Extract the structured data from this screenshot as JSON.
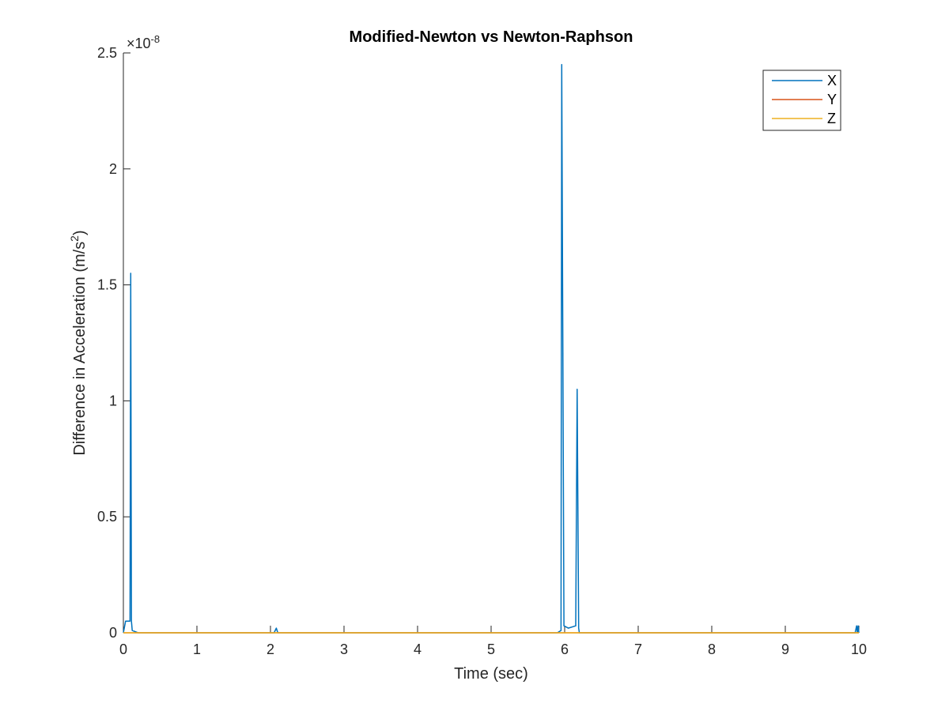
{
  "chart_data": {
    "type": "line",
    "title": "Modified-Newton vs Newton-Raphson",
    "xlabel": "Time (sec)",
    "ylabel": "Difference in Acceleration (m/s",
    "ylabel_sup": "2",
    "ylabel_close": ")",
    "exponent_prefix": "×10",
    "exponent_power": "-8",
    "xlim": [
      0,
      10
    ],
    "ylim": [
      0,
      2.5
    ],
    "x_ticks": [
      0,
      1,
      2,
      3,
      4,
      5,
      6,
      7,
      8,
      9,
      10
    ],
    "x_tick_labels": [
      "0",
      "1",
      "2",
      "3",
      "4",
      "5",
      "6",
      "7",
      "8",
      "9",
      "10"
    ],
    "y_ticks": [
      0,
      0.5,
      1,
      1.5,
      2,
      2.5
    ],
    "y_tick_labels": [
      "0",
      "0.5",
      "1",
      "1.5",
      "2",
      "2.5"
    ],
    "grid": false,
    "legend_position": "top-right",
    "series": [
      {
        "name": "X",
        "color": "#0072BD",
        "points": [
          [
            0,
            0
          ],
          [
            0.03,
            0.05
          ],
          [
            0.07,
            0.05
          ],
          [
            0.09,
            0.05
          ],
          [
            0.1,
            1.55
          ],
          [
            0.11,
            0.05
          ],
          [
            0.12,
            0.01
          ],
          [
            0.2,
            0
          ],
          [
            1,
            0
          ],
          [
            2,
            0
          ],
          [
            2.05,
            0
          ],
          [
            2.08,
            0.02
          ],
          [
            2.1,
            0
          ],
          [
            3,
            0
          ],
          [
            4,
            0
          ],
          [
            5,
            0
          ],
          [
            5.9,
            0
          ],
          [
            5.95,
            0.01
          ],
          [
            5.96,
            2.45
          ],
          [
            5.99,
            0.03
          ],
          [
            6.05,
            0.02
          ],
          [
            6.15,
            0.03
          ],
          [
            6.17,
            1.05
          ],
          [
            6.19,
            0.02
          ],
          [
            6.2,
            0
          ],
          [
            7,
            0
          ],
          [
            8,
            0
          ],
          [
            9,
            0
          ],
          [
            9.95,
            0
          ],
          [
            9.97,
            0.03
          ],
          [
            9.98,
            0
          ],
          [
            9.99,
            0.03
          ],
          [
            10,
            0
          ]
        ]
      },
      {
        "name": "Y",
        "color": "#D95319",
        "points": [
          [
            0,
            0
          ],
          [
            10,
            0
          ]
        ]
      },
      {
        "name": "Z",
        "color": "#EDB120",
        "points": [
          [
            0,
            0
          ],
          [
            10,
            0
          ]
        ]
      }
    ]
  }
}
